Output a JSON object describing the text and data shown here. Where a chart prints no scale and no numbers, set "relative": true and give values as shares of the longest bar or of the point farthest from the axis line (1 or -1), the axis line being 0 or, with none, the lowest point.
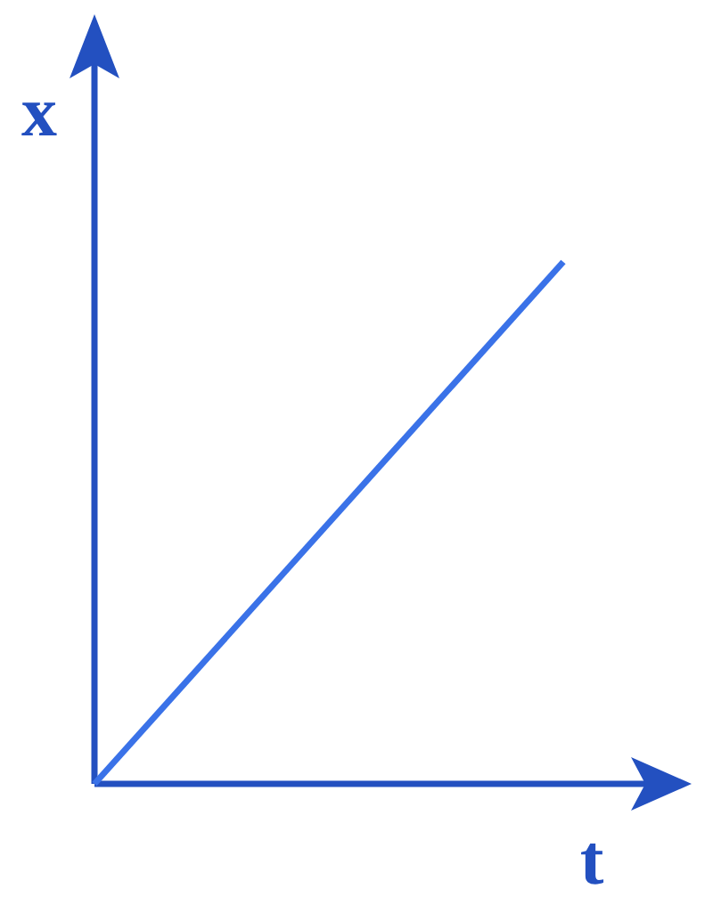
{
  "chart_data": {
    "type": "line",
    "relative": true,
    "xlabel": "t",
    "ylabel": "x",
    "categories": [
      null,
      null,
      null,
      null,
      null
    ],
    "series": [
      {
        "color": "#3a72e8",
        "values": [
          0,
          0.25,
          0.5,
          0.75,
          1
        ]
      }
    ],
    "marker": "none",
    "line_style": "solid"
  }
}
